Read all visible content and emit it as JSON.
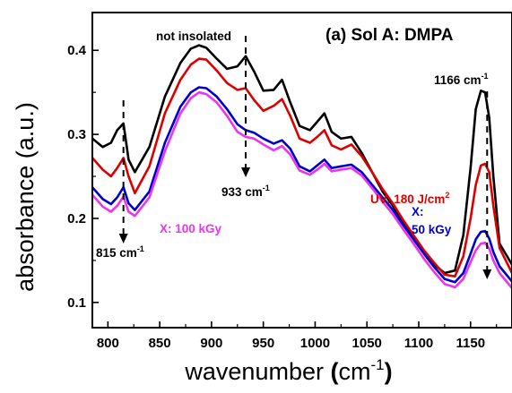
{
  "chart_data": {
    "type": "line",
    "title": "(a) Sol A: DMPA",
    "xlabel": {
      "main": "wavenumber ",
      "paren_open": "(",
      "unit": "cm",
      "sup": "-1",
      "paren_close": ")"
    },
    "ylabel": "absorbance (a.u.)",
    "xlim": [
      785,
      1190
    ],
    "ylim": [
      0.07,
      0.445
    ],
    "xticks": [
      800,
      850,
      900,
      950,
      1000,
      1050,
      1100,
      1150
    ],
    "yticks": [
      0.1,
      0.2,
      0.3,
      0.4
    ],
    "xtick_labels": [
      "800",
      "850",
      "900",
      "950",
      "1000",
      "1050",
      "1100",
      "1150"
    ],
    "ytick_labels": [
      "0.1",
      "0.2",
      "0.3",
      "0.4"
    ],
    "grid": false,
    "legend": "none",
    "series": [
      {
        "name": "not insolated",
        "color": "#000000",
        "x": [
          785,
          795,
          803,
          809,
          815,
          820,
          826,
          840,
          855,
          870,
          880,
          888,
          895,
          905,
          915,
          925,
          933,
          941,
          950,
          960,
          968,
          976,
          985,
          995,
          1002,
          1009,
          1016,
          1025,
          1035,
          1045,
          1055,
          1065,
          1075,
          1085,
          1095,
          1105,
          1115,
          1125,
          1135,
          1143,
          1150,
          1155,
          1160,
          1164,
          1168,
          1172,
          1178,
          1190
        ],
        "y": [
          0.295,
          0.285,
          0.29,
          0.305,
          0.313,
          0.27,
          0.255,
          0.285,
          0.345,
          0.385,
          0.402,
          0.406,
          0.403,
          0.39,
          0.378,
          0.381,
          0.393,
          0.375,
          0.352,
          0.353,
          0.365,
          0.338,
          0.31,
          0.305,
          0.315,
          0.325,
          0.303,
          0.295,
          0.297,
          0.278,
          0.255,
          0.232,
          0.215,
          0.195,
          0.178,
          0.16,
          0.145,
          0.135,
          0.138,
          0.18,
          0.26,
          0.33,
          0.352,
          0.35,
          0.32,
          0.25,
          0.17,
          0.145
        ]
      },
      {
        "name": "UV: 180 J/cm²",
        "color": "#dd0000",
        "x": [
          785,
          795,
          803,
          809,
          815,
          820,
          826,
          840,
          855,
          870,
          880,
          888,
          895,
          905,
          915,
          925,
          933,
          941,
          950,
          960,
          968,
          976,
          985,
          995,
          1002,
          1009,
          1016,
          1025,
          1035,
          1045,
          1055,
          1065,
          1075,
          1085,
          1095,
          1105,
          1115,
          1125,
          1135,
          1143,
          1150,
          1155,
          1160,
          1164,
          1168,
          1172,
          1178,
          1190
        ],
        "y": [
          0.272,
          0.258,
          0.25,
          0.26,
          0.272,
          0.25,
          0.23,
          0.262,
          0.325,
          0.365,
          0.383,
          0.39,
          0.389,
          0.376,
          0.361,
          0.353,
          0.355,
          0.341,
          0.328,
          0.334,
          0.342,
          0.322,
          0.295,
          0.29,
          0.297,
          0.305,
          0.287,
          0.282,
          0.288,
          0.274,
          0.255,
          0.235,
          0.218,
          0.198,
          0.18,
          0.162,
          0.147,
          0.133,
          0.131,
          0.155,
          0.2,
          0.24,
          0.263,
          0.265,
          0.255,
          0.215,
          0.165,
          0.135
        ]
      },
      {
        "name": "X: 50 kGy",
        "color": "#0000cc",
        "x": [
          785,
          795,
          803,
          809,
          815,
          820,
          826,
          840,
          855,
          870,
          880,
          888,
          895,
          905,
          915,
          925,
          933,
          941,
          950,
          960,
          968,
          976,
          985,
          995,
          1002,
          1009,
          1016,
          1025,
          1035,
          1045,
          1055,
          1065,
          1075,
          1085,
          1095,
          1105,
          1115,
          1125,
          1135,
          1143,
          1150,
          1155,
          1160,
          1164,
          1168,
          1172,
          1178,
          1190
        ],
        "y": [
          0.237,
          0.223,
          0.217,
          0.225,
          0.237,
          0.218,
          0.21,
          0.232,
          0.29,
          0.333,
          0.35,
          0.356,
          0.355,
          0.345,
          0.33,
          0.312,
          0.305,
          0.302,
          0.295,
          0.289,
          0.293,
          0.283,
          0.262,
          0.256,
          0.263,
          0.27,
          0.26,
          0.262,
          0.264,
          0.255,
          0.24,
          0.225,
          0.21,
          0.192,
          0.175,
          0.158,
          0.142,
          0.128,
          0.124,
          0.135,
          0.158,
          0.175,
          0.184,
          0.185,
          0.176,
          0.16,
          0.143,
          0.125
        ]
      },
      {
        "name": "X: 100 kGy",
        "color": "#ee33ee",
        "x": [
          785,
          795,
          803,
          809,
          815,
          820,
          826,
          840,
          855,
          870,
          880,
          888,
          895,
          905,
          915,
          925,
          933,
          941,
          950,
          960,
          968,
          976,
          985,
          995,
          1002,
          1009,
          1016,
          1025,
          1035,
          1045,
          1055,
          1065,
          1075,
          1085,
          1095,
          1105,
          1115,
          1125,
          1135,
          1143,
          1150,
          1155,
          1160,
          1164,
          1168,
          1172,
          1178,
          1190
        ],
        "y": [
          0.228,
          0.214,
          0.208,
          0.215,
          0.226,
          0.208,
          0.203,
          0.225,
          0.28,
          0.325,
          0.343,
          0.35,
          0.348,
          0.338,
          0.322,
          0.303,
          0.297,
          0.295,
          0.288,
          0.281,
          0.286,
          0.276,
          0.257,
          0.252,
          0.258,
          0.265,
          0.256,
          0.258,
          0.26,
          0.251,
          0.236,
          0.22,
          0.205,
          0.187,
          0.17,
          0.152,
          0.136,
          0.122,
          0.118,
          0.128,
          0.148,
          0.162,
          0.17,
          0.171,
          0.164,
          0.15,
          0.135,
          0.117
        ]
      }
    ],
    "annotations": {
      "not_insolated": {
        "text": "not insolated",
        "color": "#000000"
      },
      "uv": {
        "text": "UV: 180 J/cm",
        "sup": "2",
        "color": "#dd0000"
      },
      "x100": {
        "text": "X: 100 kGy",
        "color": "#ee33ee"
      },
      "x50_line1": {
        "text": "X:",
        "color": "#0000cc"
      },
      "x50_line2": {
        "text": "50 kGy",
        "color": "#0000cc"
      },
      "peak_815": {
        "text": "815 cm",
        "sup": "-1",
        "x": 815
      },
      "peak_933": {
        "text": "933 cm",
        "sup": "-1",
        "x": 933
      },
      "peak_1166": {
        "text": "1166 cm",
        "sup": "-1",
        "x": 1166
      }
    }
  }
}
